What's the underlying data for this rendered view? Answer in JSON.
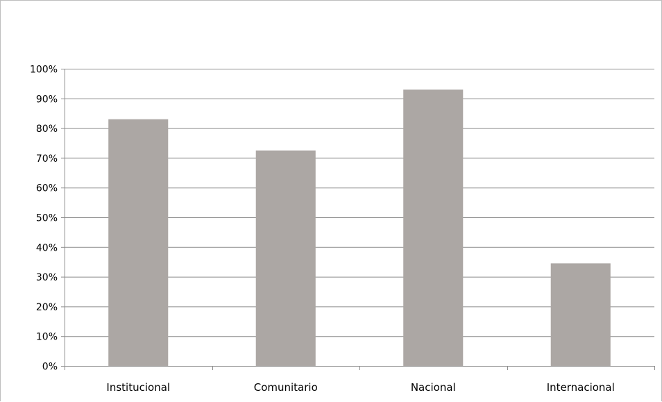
{
  "chart_data": {
    "type": "bar",
    "title": "",
    "xlabel": "",
    "ylabel": "",
    "categories": [
      "Institucional",
      "Comunitario",
      "Nacional",
      "Internacional"
    ],
    "values": [
      0.83,
      0.725,
      0.93,
      0.345
    ],
    "ylim": [
      0,
      1
    ],
    "y_ticks": [
      0,
      0.1,
      0.2,
      0.3,
      0.4,
      0.5,
      0.6,
      0.7,
      0.8,
      0.9,
      1.0
    ],
    "y_tick_labels": [
      "0%",
      "10%",
      "20%",
      "30%",
      "40%",
      "50%",
      "60%",
      "70%",
      "80%",
      "90%",
      "100%"
    ],
    "grid": true,
    "legend": "none",
    "colors": {
      "bar": "#aca7a4",
      "grid": "#8c8c8c",
      "axis": "#8c8c8c"
    }
  }
}
